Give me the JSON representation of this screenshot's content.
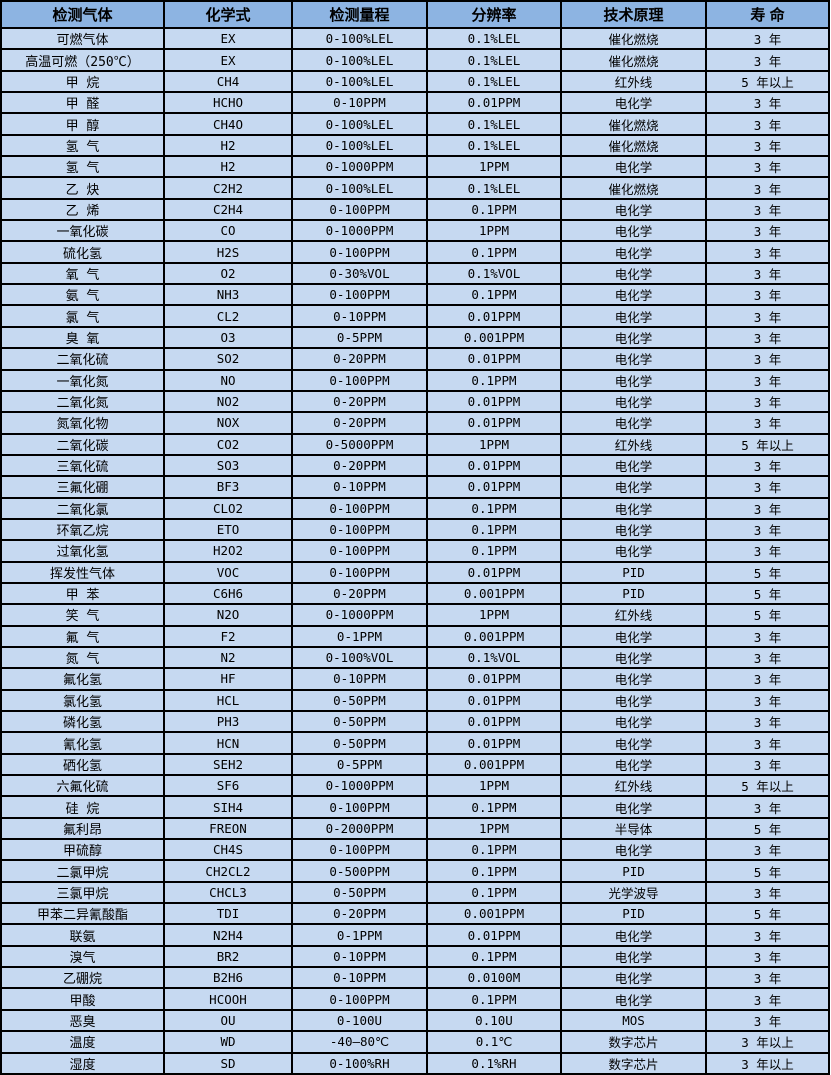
{
  "colors": {
    "header_bg": "#8db4e2",
    "row_bg": "#c6d9f1",
    "border": "#000000",
    "text": "#000000"
  },
  "table": {
    "headers": [
      "检测气体",
      "化学式",
      "检测量程",
      "分辨率",
      "技术原理",
      "寿 命"
    ],
    "rows": [
      [
        "可燃气体",
        "EX",
        "0-100%LEL",
        "0.1%LEL",
        "催化燃烧",
        "3 年"
      ],
      [
        "高温可燃（250℃）",
        "EX",
        "0-100%LEL",
        "0.1%LEL",
        "催化燃烧",
        "3 年"
      ],
      [
        "甲 烷",
        "CH4",
        "0-100%LEL",
        "0.1%LEL",
        "红外线",
        "5 年以上"
      ],
      [
        "甲 醛",
        "HCHO",
        "0-10PPM",
        "0.01PPM",
        "电化学",
        "3 年"
      ],
      [
        "甲 醇",
        "CH4O",
        "0-100%LEL",
        "0.1%LEL",
        "催化燃烧",
        "3 年"
      ],
      [
        "氢 气",
        "H2",
        "0-100%LEL",
        "0.1%LEL",
        "催化燃烧",
        "3 年"
      ],
      [
        "氢 气",
        "H2",
        "0-1000PPM",
        "1PPM",
        "电化学",
        "3 年"
      ],
      [
        "乙 炔",
        "C2H2",
        "0-100%LEL",
        "0.1%LEL",
        "催化燃烧",
        "3 年"
      ],
      [
        "乙 烯",
        "C2H4",
        "0-100PPM",
        "0.1PPM",
        "电化学",
        "3 年"
      ],
      [
        "一氧化碳",
        "CO",
        "0-1000PPM",
        "1PPM",
        "电化学",
        "3 年"
      ],
      [
        "硫化氢",
        "H2S",
        "0-100PPM",
        "0.1PPM",
        "电化学",
        "3 年"
      ],
      [
        "氧 气",
        "O2",
        "0-30%VOL",
        "0.1%VOL",
        "电化学",
        "3 年"
      ],
      [
        "氨 气",
        "NH3",
        "0-100PPM",
        "0.1PPM",
        "电化学",
        "3 年"
      ],
      [
        "氯 气",
        "CL2",
        "0-10PPM",
        "0.01PPM",
        "电化学",
        "3 年"
      ],
      [
        "臭 氧",
        "O3",
        "0-5PPM",
        "0.001PPM",
        "电化学",
        "3 年"
      ],
      [
        "二氧化硫",
        "SO2",
        "0-20PPM",
        "0.01PPM",
        "电化学",
        "3 年"
      ],
      [
        "一氧化氮",
        "NO",
        "0-100PPM",
        "0.1PPM",
        "电化学",
        "3 年"
      ],
      [
        "二氧化氮",
        "NO2",
        "0-20PPM",
        "0.01PPM",
        "电化学",
        "3 年"
      ],
      [
        "氮氧化物",
        "NOX",
        "0-20PPM",
        "0.01PPM",
        "电化学",
        "3 年"
      ],
      [
        "二氧化碳",
        "CO2",
        "0-5000PPM",
        "1PPM",
        "红外线",
        "5 年以上"
      ],
      [
        "三氧化硫",
        "SO3",
        "0-20PPM",
        "0.01PPM",
        "电化学",
        "3 年"
      ],
      [
        "三氟化硼",
        "BF3",
        "0-10PPM",
        "0.01PPM",
        "电化学",
        "3 年"
      ],
      [
        "二氧化氯",
        "CLO2",
        "0-100PPM",
        "0.1PPM",
        "电化学",
        "3 年"
      ],
      [
        "环氧乙烷",
        "ETO",
        "0-100PPM",
        "0.1PPM",
        "电化学",
        "3 年"
      ],
      [
        "过氧化氢",
        "H2O2",
        "0-100PPM",
        "0.1PPM",
        "电化学",
        "3 年"
      ],
      [
        "挥发性气体",
        "VOC",
        "0-100PPM",
        "0.01PPM",
        "PID",
        "5 年"
      ],
      [
        "甲 苯",
        "C6H6",
        "0-20PPM",
        "0.001PPM",
        "PID",
        "5 年"
      ],
      [
        "笑 气",
        "N2O",
        "0-1000PPM",
        "1PPM",
        "红外线",
        "5 年"
      ],
      [
        "氟 气",
        "F2",
        "0-1PPM",
        "0.001PPM",
        "电化学",
        "3 年"
      ],
      [
        "氮 气",
        "N2",
        "0-100%VOL",
        "0.1%VOL",
        "电化学",
        "3 年"
      ],
      [
        "氟化氢",
        "HF",
        "0-10PPM",
        "0.01PPM",
        "电化学",
        "3 年"
      ],
      [
        "氯化氢",
        "HCL",
        "0-50PPM",
        "0.01PPM",
        "电化学",
        "3 年"
      ],
      [
        "磷化氢",
        "PH3",
        "0-50PPM",
        "0.01PPM",
        "电化学",
        "3 年"
      ],
      [
        "氰化氢",
        "HCN",
        "0-50PPM",
        "0.01PPM",
        "电化学",
        "3 年"
      ],
      [
        "硒化氢",
        "SEH2",
        "0-5PPM",
        "0.001PPM",
        "电化学",
        "3 年"
      ],
      [
        "六氟化硫",
        "SF6",
        "0-1000PPM",
        "1PPM",
        "红外线",
        "5 年以上"
      ],
      [
        "硅 烷",
        "SIH4",
        "0-100PPM",
        "0.1PPM",
        "电化学",
        "3 年"
      ],
      [
        "氟利昂",
        "FREON",
        "0-2000PPM",
        "1PPM",
        "半导体",
        "5 年"
      ],
      [
        "甲硫醇",
        "CH4S",
        "0-100PPM",
        "0.1PPM",
        "电化学",
        "3 年"
      ],
      [
        "二氯甲烷",
        "CH2CL2",
        "0-500PPM",
        "0.1PPM",
        "PID",
        "5 年"
      ],
      [
        "三氯甲烷",
        "CHCL3",
        "0-50PPM",
        "0.1PPM",
        "光学波导",
        "3 年"
      ],
      [
        "甲苯二异氰酸酯",
        "TDI",
        "0-20PPM",
        "0.001PPM",
        "PID",
        "5 年"
      ],
      [
        "联氨",
        "N2H4",
        "0-1PPM",
        "0.01PPM",
        "电化学",
        "3 年"
      ],
      [
        "溴气",
        "BR2",
        "0-10PPM",
        "0.1PPM",
        "电化学",
        "3 年"
      ],
      [
        "乙硼烷",
        "B2H6",
        "0-10PPM",
        "0.0100M",
        "电化学",
        "3 年"
      ],
      [
        "甲酸",
        "HCOOH",
        "0-100PPM",
        "0.1PPM",
        "电化学",
        "3 年"
      ],
      [
        "恶臭",
        "OU",
        "0-100U",
        "0.10U",
        "MOS",
        "3 年"
      ],
      [
        "温度",
        "WD",
        "-40—80℃",
        "0.1℃",
        "数字芯片",
        "3 年以上"
      ],
      [
        "湿度",
        "SD",
        "0-100%RH",
        "0.1%RH",
        "数字芯片",
        "3 年以上"
      ]
    ]
  }
}
